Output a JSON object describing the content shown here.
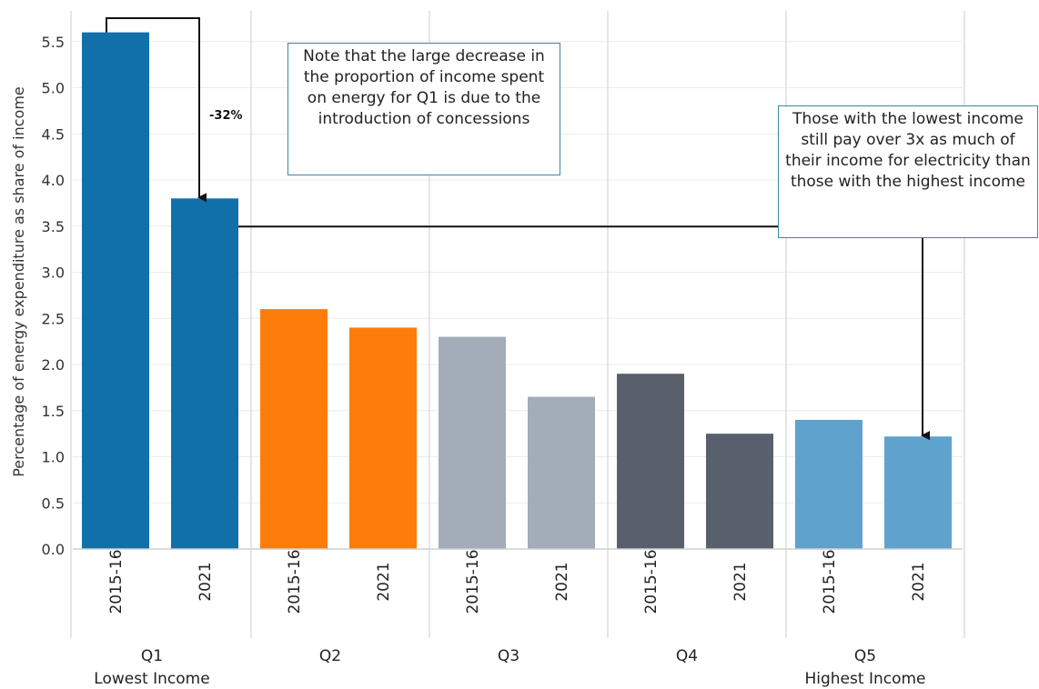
{
  "chart_data": {
    "type": "bar",
    "ylabel": "Percentage of energy expenditure as share of income",
    "ylim": [
      0,
      5.6
    ],
    "yticks": [
      0.0,
      0.5,
      1.0,
      1.5,
      2.0,
      2.5,
      3.0,
      3.5,
      4.0,
      4.5,
      5.0,
      5.5
    ],
    "ytick_labels": [
      "0.0",
      "0.5",
      "1.0",
      "1.5",
      "2.0",
      "2.5",
      "3.0",
      "3.5",
      "4.0",
      "4.5",
      "5.0",
      "5.5"
    ],
    "grid": true,
    "groups": [
      {
        "label": "Q1",
        "sublabel": "Lowest Income",
        "color": "#1170aa",
        "bars": [
          {
            "category": "2015-16",
            "value": 5.6
          },
          {
            "category": "2021",
            "value": 3.8
          }
        ]
      },
      {
        "label": "Q2",
        "sublabel": "",
        "color": "#fc7d0b",
        "bars": [
          {
            "category": "2015-16",
            "value": 2.6
          },
          {
            "category": "2021",
            "value": 2.4
          }
        ]
      },
      {
        "label": "Q3",
        "sublabel": "",
        "color": "#a3acb9",
        "bars": [
          {
            "category": "2015-16",
            "value": 2.3
          },
          {
            "category": "2021",
            "value": 1.65
          }
        ]
      },
      {
        "label": "Q4",
        "sublabel": "",
        "color": "#57606c",
        "bars": [
          {
            "category": "2015-16",
            "value": 1.9
          },
          {
            "category": "2021",
            "value": 1.25
          }
        ]
      },
      {
        "label": "Q5",
        "sublabel": "Highest Income",
        "color": "#5fa2ce",
        "bars": [
          {
            "category": "2015-16",
            "value": 1.4
          },
          {
            "category": "2021",
            "value": 1.22
          }
        ]
      }
    ],
    "annotations": {
      "change_label": "-32%",
      "note_concessions": "Note that the large decrease in the proportion of income spent on energy for Q1 is due to the introduction of concessions",
      "note_lowest_income": "Those with the lowest income still pay over 3x as much of their income for electricity than those with the highest income"
    }
  }
}
